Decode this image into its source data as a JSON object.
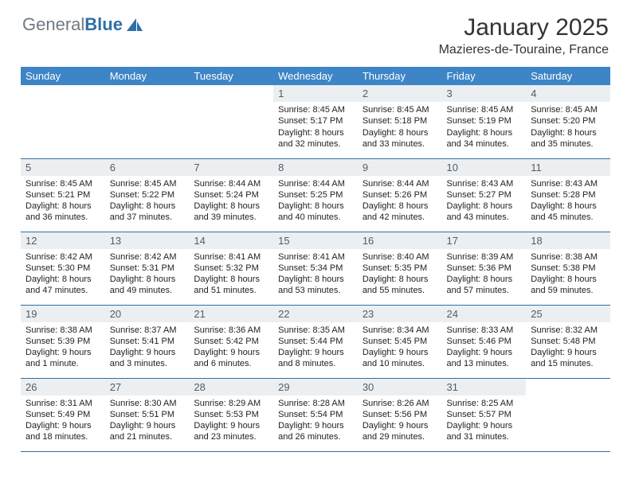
{
  "brand": {
    "general": "General",
    "blue": "Blue"
  },
  "title": "January 2025",
  "subtitle": "Mazieres-de-Touraine, France",
  "colors": {
    "header_bg": "#3d85c6",
    "header_text": "#ffffff",
    "daynum_bg": "#eceff1",
    "border": "#2f6fa8",
    "logo_gray": "#6f7a84",
    "logo_blue": "#2f6fa8"
  },
  "daynames": [
    "Sunday",
    "Monday",
    "Tuesday",
    "Wednesday",
    "Thursday",
    "Friday",
    "Saturday"
  ],
  "weeks": [
    [
      null,
      null,
      null,
      {
        "n": "1",
        "sunrise": "8:45 AM",
        "sunset": "5:17 PM",
        "d_h": "8",
        "d_m": "32"
      },
      {
        "n": "2",
        "sunrise": "8:45 AM",
        "sunset": "5:18 PM",
        "d_h": "8",
        "d_m": "33"
      },
      {
        "n": "3",
        "sunrise": "8:45 AM",
        "sunset": "5:19 PM",
        "d_h": "8",
        "d_m": "34"
      },
      {
        "n": "4",
        "sunrise": "8:45 AM",
        "sunset": "5:20 PM",
        "d_h": "8",
        "d_m": "35"
      }
    ],
    [
      {
        "n": "5",
        "sunrise": "8:45 AM",
        "sunset": "5:21 PM",
        "d_h": "8",
        "d_m": "36"
      },
      {
        "n": "6",
        "sunrise": "8:45 AM",
        "sunset": "5:22 PM",
        "d_h": "8",
        "d_m": "37"
      },
      {
        "n": "7",
        "sunrise": "8:44 AM",
        "sunset": "5:24 PM",
        "d_h": "8",
        "d_m": "39"
      },
      {
        "n": "8",
        "sunrise": "8:44 AM",
        "sunset": "5:25 PM",
        "d_h": "8",
        "d_m": "40"
      },
      {
        "n": "9",
        "sunrise": "8:44 AM",
        "sunset": "5:26 PM",
        "d_h": "8",
        "d_m": "42"
      },
      {
        "n": "10",
        "sunrise": "8:43 AM",
        "sunset": "5:27 PM",
        "d_h": "8",
        "d_m": "43"
      },
      {
        "n": "11",
        "sunrise": "8:43 AM",
        "sunset": "5:28 PM",
        "d_h": "8",
        "d_m": "45"
      }
    ],
    [
      {
        "n": "12",
        "sunrise": "8:42 AM",
        "sunset": "5:30 PM",
        "d_h": "8",
        "d_m": "47"
      },
      {
        "n": "13",
        "sunrise": "8:42 AM",
        "sunset": "5:31 PM",
        "d_h": "8",
        "d_m": "49"
      },
      {
        "n": "14",
        "sunrise": "8:41 AM",
        "sunset": "5:32 PM",
        "d_h": "8",
        "d_m": "51"
      },
      {
        "n": "15",
        "sunrise": "8:41 AM",
        "sunset": "5:34 PM",
        "d_h": "8",
        "d_m": "53"
      },
      {
        "n": "16",
        "sunrise": "8:40 AM",
        "sunset": "5:35 PM",
        "d_h": "8",
        "d_m": "55"
      },
      {
        "n": "17",
        "sunrise": "8:39 AM",
        "sunset": "5:36 PM",
        "d_h": "8",
        "d_m": "57"
      },
      {
        "n": "18",
        "sunrise": "8:38 AM",
        "sunset": "5:38 PM",
        "d_h": "8",
        "d_m": "59"
      }
    ],
    [
      {
        "n": "19",
        "sunrise": "8:38 AM",
        "sunset": "5:39 PM",
        "d_h": "9",
        "d_m": "1",
        "singular": true
      },
      {
        "n": "20",
        "sunrise": "8:37 AM",
        "sunset": "5:41 PM",
        "d_h": "9",
        "d_m": "3"
      },
      {
        "n": "21",
        "sunrise": "8:36 AM",
        "sunset": "5:42 PM",
        "d_h": "9",
        "d_m": "6"
      },
      {
        "n": "22",
        "sunrise": "8:35 AM",
        "sunset": "5:44 PM",
        "d_h": "9",
        "d_m": "8"
      },
      {
        "n": "23",
        "sunrise": "8:34 AM",
        "sunset": "5:45 PM",
        "d_h": "9",
        "d_m": "10"
      },
      {
        "n": "24",
        "sunrise": "8:33 AM",
        "sunset": "5:46 PM",
        "d_h": "9",
        "d_m": "13"
      },
      {
        "n": "25",
        "sunrise": "8:32 AM",
        "sunset": "5:48 PM",
        "d_h": "9",
        "d_m": "15"
      }
    ],
    [
      {
        "n": "26",
        "sunrise": "8:31 AM",
        "sunset": "5:49 PM",
        "d_h": "9",
        "d_m": "18"
      },
      {
        "n": "27",
        "sunrise": "8:30 AM",
        "sunset": "5:51 PM",
        "d_h": "9",
        "d_m": "21"
      },
      {
        "n": "28",
        "sunrise": "8:29 AM",
        "sunset": "5:53 PM",
        "d_h": "9",
        "d_m": "23"
      },
      {
        "n": "29",
        "sunrise": "8:28 AM",
        "sunset": "5:54 PM",
        "d_h": "9",
        "d_m": "26"
      },
      {
        "n": "30",
        "sunrise": "8:26 AM",
        "sunset": "5:56 PM",
        "d_h": "9",
        "d_m": "29"
      },
      {
        "n": "31",
        "sunrise": "8:25 AM",
        "sunset": "5:57 PM",
        "d_h": "9",
        "d_m": "31"
      },
      null
    ]
  ]
}
